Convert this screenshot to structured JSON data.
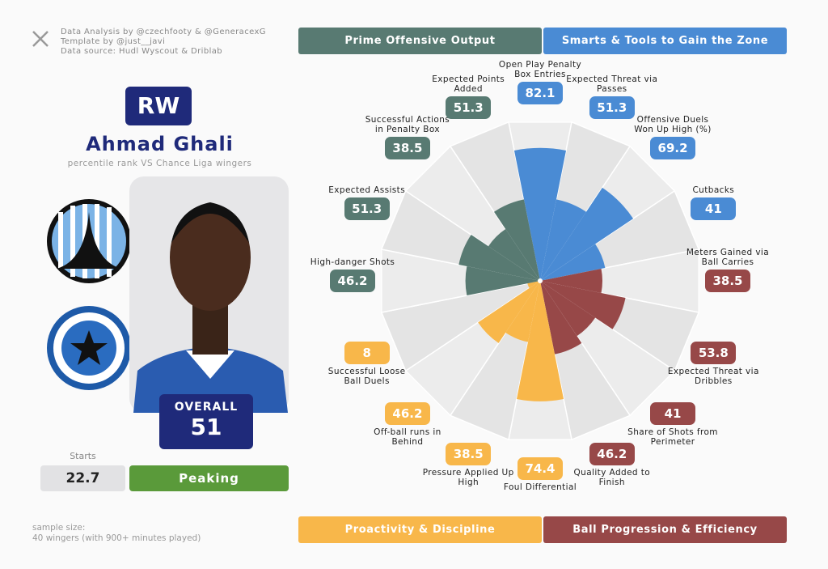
{
  "header": {
    "credits": [
      "Data Analysis by @czechfooty & @GeneracexG",
      "Template by @just__javi",
      "Data source: Hudl Wyscout & Driblab"
    ]
  },
  "player": {
    "position": "RW",
    "name": "Ahmad Ghali",
    "subtitle": "percentile rank VS Chance Liga wingers",
    "overall_label": "OVERALL",
    "overall": 51,
    "starts_label": "Starts",
    "starts": 22.7,
    "status": "Peaking"
  },
  "footer": {
    "sample_size": [
      "sample size:",
      "40 wingers (with 900+ minutes played)"
    ]
  },
  "chart_data": {
    "type": "pizza",
    "rlim": [
      0,
      100
    ],
    "series": [
      {
        "name": "Smarts & Tools to Gain the Zone",
        "color": "#4a8bd4",
        "categories": [
          "Open Play Penalty Box Entries",
          "Expected Threat via Passes",
          "Offensive Duels Won Up High (%)",
          "Cutbacks"
        ],
        "values": [
          82.1,
          51.3,
          69.2,
          41
        ]
      },
      {
        "name": "Ball Progression & Efficiency",
        "color": "#974848",
        "categories": [
          "Meters Gained via Ball Carries",
          "Expected Threat via Dribbles",
          "Share of Shots from Perimeter",
          "Quality Added to Finish"
        ],
        "values": [
          38.5,
          53.8,
          41,
          46.2
        ]
      },
      {
        "name": "Proactivity & Discipline",
        "color": "#f8b74a",
        "categories": [
          "Foul Differential",
          "Pressure Applied Up High",
          "Off-ball runs in Behind",
          "Successful Loose Ball Duels"
        ],
        "values": [
          74.4,
          38.5,
          46.2,
          8
        ]
      },
      {
        "name": "Prime Offensive Output",
        "color": "#587a72",
        "categories": [
          "High-danger Shots",
          "Expected Assists",
          "Successful Actions in Penalty Box",
          "Expected Points Added"
        ],
        "values": [
          46.2,
          51.3,
          38.5,
          51.3
        ]
      }
    ]
  }
}
